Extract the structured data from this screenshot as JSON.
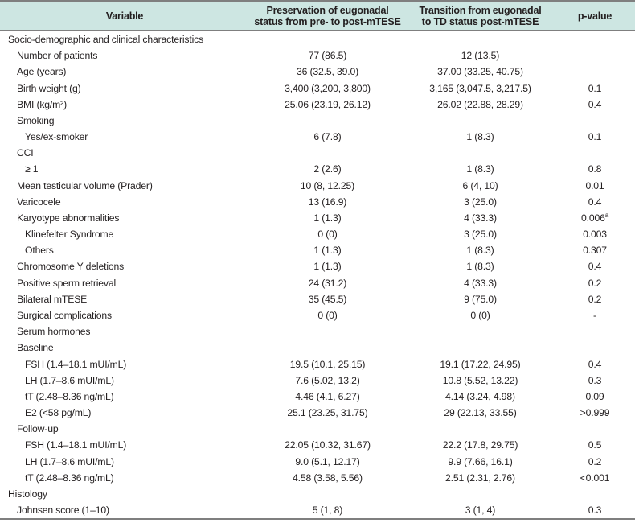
{
  "colors": {
    "header_bg": "#cde6e2",
    "border": "#7f7f7f",
    "text": "#231f20"
  },
  "table": {
    "header": {
      "col1": "Variable",
      "col2_line1": "Preservation of eugonadal",
      "col2_line2": "status from pre- to post-mTESE",
      "col3_line1": "Transition from eugonadal",
      "col3_line2": "to TD status post-mTESE",
      "col4": "p-value"
    },
    "rows": [
      {
        "label": "Socio-demographic and clinical characteristics",
        "indent": 0,
        "c1": "",
        "c2": "",
        "p": ""
      },
      {
        "label": "Number of patients",
        "indent": 1,
        "c1": "77 (86.5)",
        "c2": "12 (13.5)",
        "p": ""
      },
      {
        "label": "Age (years)",
        "indent": 1,
        "c1": "36 (32.5, 39.0)",
        "c2": "37.00 (33.25, 40.75)",
        "p": ""
      },
      {
        "label": "Birth weight (g)",
        "indent": 1,
        "c1": "3,400 (3,200, 3,800)",
        "c2": "3,165 (3,047.5, 3,217.5)",
        "p": "0.1"
      },
      {
        "label": "BMI (kg/m²)",
        "indent": 1,
        "c1": "25.06 (23.19, 26.12)",
        "c2": "26.02 (22.88, 28.29)",
        "p": "0.4"
      },
      {
        "label": "Smoking",
        "indent": 1,
        "c1": "",
        "c2": "",
        "p": ""
      },
      {
        "label": "Yes/ex-smoker",
        "indent": 2,
        "c1": "6 (7.8)",
        "c2": "1 (8.3)",
        "p": "0.1"
      },
      {
        "label": "CCI",
        "indent": 1,
        "c1": "",
        "c2": "",
        "p": ""
      },
      {
        "label": "≥ 1",
        "indent": 2,
        "c1": "2 (2.6)",
        "c2": "1 (8.3)",
        "p": "0.8"
      },
      {
        "label": "Mean testicular volume (Prader)",
        "indent": 1,
        "c1": "10 (8, 12.25)",
        "c2": "6 (4, 10)",
        "p": "0.01"
      },
      {
        "label": "Varicocele",
        "indent": 1,
        "c1": "13 (16.9)",
        "c2": "3 (25.0)",
        "p": "0.4"
      },
      {
        "label": "Karyotype abnormalities",
        "indent": 1,
        "c1": "1 (1.3)",
        "c2": "4 (33.3)",
        "p": "0.006",
        "p_sup": "a"
      },
      {
        "label": "Klinefelter Syndrome",
        "indent": 2,
        "c1": "0 (0)",
        "c2": "3 (25.0)",
        "p": "0.003"
      },
      {
        "label": "Others",
        "indent": 2,
        "c1": "1 (1.3)",
        "c2": "1 (8.3)",
        "p": "0.307"
      },
      {
        "label": "Chromosome Y deletions",
        "indent": 1,
        "c1": "1 (1.3)",
        "c2": "1 (8.3)",
        "p": "0.4"
      },
      {
        "label": "Positive sperm retrieval",
        "indent": 1,
        "c1": "24 (31.2)",
        "c2": "4 (33.3)",
        "p": "0.2"
      },
      {
        "label": "Bilateral mTESE",
        "indent": 1,
        "c1": "35 (45.5)",
        "c2": "9 (75.0)",
        "p": "0.2"
      },
      {
        "label": "Surgical complications",
        "indent": 1,
        "c1": "0 (0)",
        "c2": "0 (0)",
        "p": "-"
      },
      {
        "label": "Serum hormones",
        "indent": 1,
        "c1": "",
        "c2": "",
        "p": ""
      },
      {
        "label": "Baseline",
        "indent": 1,
        "c1": "",
        "c2": "",
        "p": ""
      },
      {
        "label": "FSH (1.4–18.1 mUI/mL)",
        "indent": 2,
        "c1": "19.5 (10.1, 25.15)",
        "c2": "19.1 (17.22, 24.95)",
        "p": "0.4"
      },
      {
        "label": "LH (1.7–8.6 mUI/mL)",
        "indent": 2,
        "c1": "7.6 (5.02, 13.2)",
        "c2": "10.8 (5.52, 13.22)",
        "p": "0.3"
      },
      {
        "label": "tT (2.48–8.36 ng/mL)",
        "indent": 2,
        "c1": "4.46 (4.1, 6.27)",
        "c2": "4.14 (3.24, 4.98)",
        "p": "0.09"
      },
      {
        "label": "E2 (<58 pg/mL)",
        "indent": 2,
        "c1": "25.1 (23.25, 31.75)",
        "c2": "29 (22.13, 33.55)",
        "p": ">0.999"
      },
      {
        "label": "Follow-up",
        "indent": 1,
        "c1": "",
        "c2": "",
        "p": ""
      },
      {
        "label": "FSH (1.4–18.1 mUI/mL)",
        "indent": 2,
        "c1": "22.05 (10.32, 31.67)",
        "c2": "22.2 (17.8, 29.75)",
        "p": "0.5"
      },
      {
        "label": "LH (1.7–8.6 mUI/mL)",
        "indent": 2,
        "c1": "9.0 (5.1, 12.17)",
        "c2": "9.9 (7.66, 16.1)",
        "p": "0.2"
      },
      {
        "label": "tT (2.48–8.36 ng/mL)",
        "indent": 2,
        "c1": "4.58 (3.58, 5.56)",
        "c2": "2.51 (2.31, 2.76)",
        "p": "<0.001"
      },
      {
        "label": "Histology",
        "indent": 0,
        "c1": "",
        "c2": "",
        "p": ""
      },
      {
        "label": "Johnsen score (1–10)",
        "indent": 1,
        "c1": "5 (1, 8)",
        "c2": "3 (1, 4)",
        "p": "0.3"
      }
    ]
  }
}
